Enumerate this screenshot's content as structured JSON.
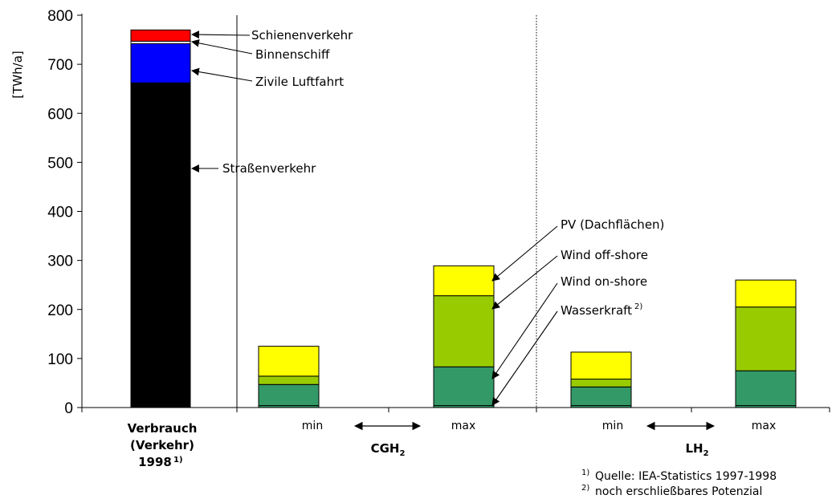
{
  "chart_data": {
    "type": "bar",
    "stacked": true,
    "ylabel": "[TWh/a]",
    "ylim": [
      0,
      800
    ],
    "y_ticks": [
      "0",
      "100",
      "200",
      "300",
      "400",
      "500",
      "600",
      "700",
      "800"
    ],
    "grid": false,
    "colors": {
      "road": "#000000",
      "air": "#0000ff",
      "ship": "#ffffff",
      "rail": "#ff0000",
      "hydro": "#339966",
      "onshore": "#339966",
      "offshore": "#99cc00",
      "pv": "#ffff00"
    },
    "consumption_bar": {
      "label_lines": [
        "Verbrauch",
        "(Verkehr)",
        "1998"
      ],
      "label_sup": "1)",
      "segments": [
        {
          "key": "road",
          "value": 662
        },
        {
          "key": "air",
          "value": 80
        },
        {
          "key": "ship",
          "value": 5
        },
        {
          "key": "rail",
          "value": 23
        }
      ]
    },
    "supply_bars": [
      {
        "group": "CGH2",
        "label": "min",
        "segments": [
          {
            "key": "hydro",
            "value": 4
          },
          {
            "key": "onshore",
            "value": 43
          },
          {
            "key": "offshore",
            "value": 17
          },
          {
            "key": "pv",
            "value": 61
          }
        ]
      },
      {
        "group": "CGH2",
        "label": "max",
        "segments": [
          {
            "key": "hydro",
            "value": 4
          },
          {
            "key": "onshore",
            "value": 79
          },
          {
            "key": "offshore",
            "value": 145
          },
          {
            "key": "pv",
            "value": 61
          }
        ]
      },
      {
        "group": "LH2",
        "label": "min",
        "segments": [
          {
            "key": "hydro",
            "value": 4
          },
          {
            "key": "onshore",
            "value": 38
          },
          {
            "key": "offshore",
            "value": 16
          },
          {
            "key": "pv",
            "value": 55
          }
        ]
      },
      {
        "group": "LH2",
        "label": "max",
        "segments": [
          {
            "key": "hydro",
            "value": 4
          },
          {
            "key": "onshore",
            "value": 71
          },
          {
            "key": "offshore",
            "value": 130
          },
          {
            "key": "pv",
            "value": 55
          }
        ]
      }
    ],
    "groups": [
      {
        "base": "CGH",
        "sub": "2"
      },
      {
        "base": "LH",
        "sub": "2"
      }
    ],
    "annotations": {
      "rail": "Schienenverkehr",
      "ship": "Binnenschiff",
      "air": "Zivile Luftfahrt",
      "road": "Straßenverkehr",
      "pv": "PV (Dachflächen)",
      "offshore": "Wind off-shore",
      "onshore": "Wind on-shore",
      "hydro": "Wasserkraft",
      "hydro_sup": "2)"
    },
    "footnotes": [
      {
        "sup": "1)",
        "text": "Quelle: IEA-Statistics 1997-1998"
      },
      {
        "sup": "2)",
        "text": "noch erschließbares Potenzial"
      }
    ]
  }
}
